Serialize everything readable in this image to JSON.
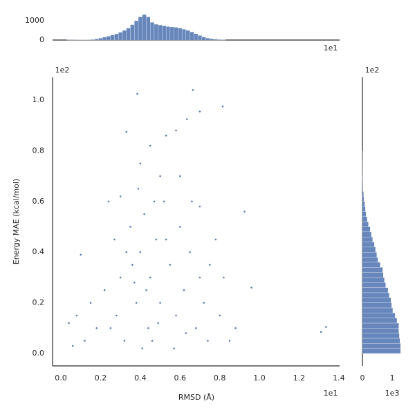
{
  "chart_data": [
    {
      "type": "scatter",
      "x_label": "RMSD (Å)",
      "y_label": "Energy MAE (kcal/mol)",
      "x_offset_label": "1e1",
      "y_offset_label": "1e2",
      "color": "#4c72b0",
      "xlim": [
        -0.042,
        1.404
      ],
      "ylim": [
        -0.049,
        1.09
      ],
      "xticks": [
        {
          "value": 0,
          "label": "0.0"
        },
        0.2,
        0.4,
        0.6,
        0.8,
        {
          "value": 1,
          "label": "1.0"
        },
        1.2,
        1.4
      ],
      "yticks": [
        {
          "value": 0,
          "label": "0.0"
        },
        0.2,
        0.4,
        0.6,
        0.8,
        {
          "value": 1,
          "label": "1.0"
        }
      ],
      "x": [
        0.385,
        0.665,
        0.7,
        0.815,
        0.635,
        0.33,
        1.31,
        1.335,
        0.925,
        0.96,
        0.1,
        0.04,
        0.58,
        0.53,
        0.25,
        0.3,
        0.35,
        0.38,
        0.4,
        0.42,
        0.44,
        0.45,
        0.48,
        0.5,
        0.52,
        0.55,
        0.58,
        0.6,
        0.62,
        0.65,
        0.68,
        0.7,
        0.72,
        0.75,
        0.8,
        0.85,
        0.28,
        0.32,
        0.36,
        0.41,
        0.43,
        0.46,
        0.47,
        0.5,
        0.39,
        0.33,
        0.27,
        0.22,
        0.18,
        0.12,
        0.06,
        0.08,
        0.15,
        0.57,
        0.63,
        0.66,
        0.74,
        0.78,
        0.82,
        0.88,
        0.53,
        0.4,
        0.45,
        0.6,
        0.24,
        0.3,
        0.7,
        0.37,
        0.49
      ],
      "y": [
        1.025,
        1.04,
        0.955,
        0.975,
        0.925,
        0.875,
        0.085,
        0.105,
        0.56,
        0.26,
        0.39,
        0.12,
        0.88,
        0.86,
        0.1,
        0.3,
        0.5,
        0.2,
        0.4,
        0.55,
        0.1,
        0.3,
        0.45,
        0.2,
        0.6,
        0.35,
        0.15,
        0.5,
        0.25,
        0.4,
        0.1,
        0.3,
        0.2,
        0.35,
        0.15,
        0.05,
        0.15,
        0.05,
        0.35,
        0.02,
        0.25,
        0.05,
        0.6,
        0.7,
        0.65,
        0.4,
        0.45,
        0.25,
        0.1,
        0.05,
        0.03,
        0.15,
        0.2,
        0.02,
        0.08,
        0.6,
        0.05,
        0.45,
        0.3,
        0.1,
        0.45,
        0.75,
        0.82,
        0.7,
        0.6,
        0.62,
        0.58,
        0.28,
        0.12
      ]
    },
    {
      "type": "histogram",
      "x_offset_label": "1e1",
      "color": "#4c72b0",
      "xlim": [
        -0.042,
        1.404
      ],
      "ylim": [
        0,
        1430
      ],
      "yticks": [
        0,
        1000
      ],
      "bins": [
        0.03,
        0.05,
        0.07,
        0.09,
        0.11,
        0.13,
        0.15,
        0.17,
        0.19,
        0.21,
        0.23,
        0.25,
        0.27,
        0.29,
        0.31,
        0.33,
        0.35,
        0.37,
        0.39,
        0.41,
        0.43,
        0.45,
        0.47,
        0.49,
        0.51,
        0.53,
        0.55,
        0.57,
        0.59,
        0.61,
        0.63,
        0.65,
        0.67,
        0.69,
        0.71,
        0.73,
        0.75,
        0.77,
        0.79,
        0.81,
        0.83
      ],
      "values": [
        20,
        20,
        15,
        10,
        10,
        15,
        30,
        60,
        100,
        150,
        200,
        260,
        320,
        400,
        500,
        620,
        800,
        1000,
        1200,
        1320,
        1200,
        920,
        820,
        780,
        740,
        700,
        680,
        660,
        620,
        560,
        500,
        420,
        330,
        240,
        160,
        100,
        70,
        50,
        30,
        20
      ]
    },
    {
      "type": "histogram-horizontal",
      "y_offset_label": "1e2",
      "x_offset_label": "1e3",
      "color": "#4c72b0",
      "xlim": [
        0,
        1.3
      ],
      "xticks": [
        0,
        1
      ],
      "ylim": [
        -0.049,
        1.09
      ],
      "bins": [
        0,
        0.02,
        0.04,
        0.06,
        0.08,
        0.1,
        0.12,
        0.14,
        0.16,
        0.18,
        0.2,
        0.22,
        0.24,
        0.26,
        0.28,
        0.3,
        0.32,
        0.34,
        0.36,
        0.38,
        0.4,
        0.42,
        0.44,
        0.46,
        0.48,
        0.5,
        0.52,
        0.54,
        0.56,
        0.58,
        0.6,
        0.62,
        0.64,
        0.66,
        0.68,
        0.7,
        0.72,
        0.74,
        0.76,
        0.78,
        0.8
      ],
      "values": [
        1.28,
        1.28,
        1.26,
        1.24,
        1.22,
        1.22,
        1.16,
        1.1,
        1.02,
        0.98,
        0.96,
        0.9,
        0.86,
        0.78,
        0.74,
        0.7,
        0.68,
        0.6,
        0.52,
        0.48,
        0.44,
        0.4,
        0.34,
        0.3,
        0.26,
        0.2,
        0.16,
        0.12,
        0.1,
        0.08,
        0.05,
        0.04,
        0.02,
        0.015,
        0.01,
        0.005,
        0.003,
        0.002,
        0.001,
        0.001
      ]
    }
  ]
}
